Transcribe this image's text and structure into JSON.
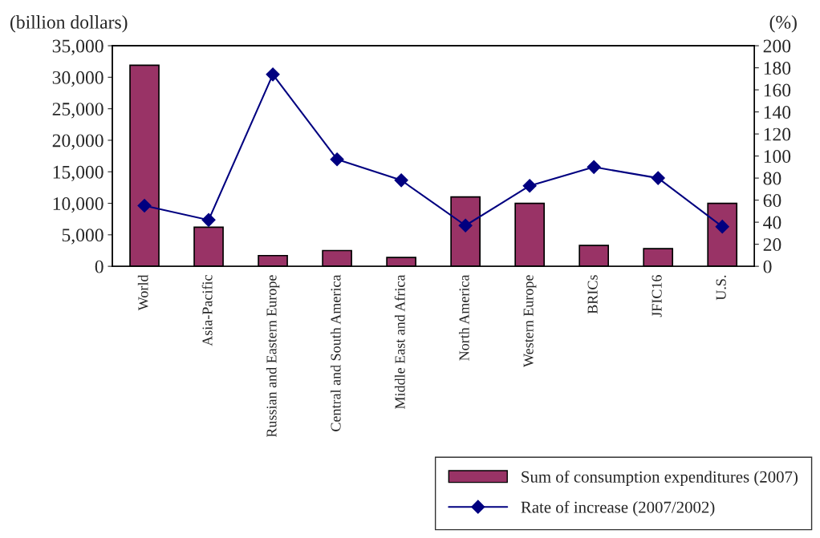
{
  "chart_data": {
    "type": "bar",
    "categories": [
      "World",
      "Asia-Pacific",
      "Russian and Eastern Europe",
      "Central and South America",
      "Middle East and Africa",
      "North America",
      "Western Europe",
      "BRICs",
      "JFIC16",
      "U.S."
    ],
    "ylabel": "(billion dollars)",
    "y2label": "(%)",
    "series": [
      {
        "name": "Sum of consumption expenditures (2007)",
        "color": "#993366",
        "values": [
          31900,
          6200,
          1700,
          2500,
          1400,
          11000,
          10000,
          3300,
          2800,
          10000
        ]
      },
      {
        "name": "Rate of increase (2007/2002)",
        "type": "line",
        "axis": "y2",
        "color": "#000080",
        "marker": "diamond",
        "values": [
          55,
          42,
          174,
          97,
          78,
          37,
          73,
          90,
          80,
          36
        ]
      }
    ],
    "ylim": [
      0,
      35000
    ],
    "yticks": [
      0,
      {
        "value": 5000,
        "label": "5,000"
      },
      {
        "value": 10000,
        "label": "10,000"
      },
      {
        "value": 15000,
        "label": "15,000"
      },
      {
        "value": 20000,
        "label": "20,000"
      },
      {
        "value": 25000,
        "label": "25,000"
      },
      {
        "value": 30000,
        "label": "30,000"
      },
      {
        "value": 35000,
        "label": "35,000"
      }
    ],
    "y2lim": [
      0,
      200
    ],
    "y2ticks": [
      0,
      20,
      40,
      60,
      80,
      100,
      120,
      140,
      160,
      180,
      200
    ],
    "legend": "bottom",
    "grid": false
  }
}
